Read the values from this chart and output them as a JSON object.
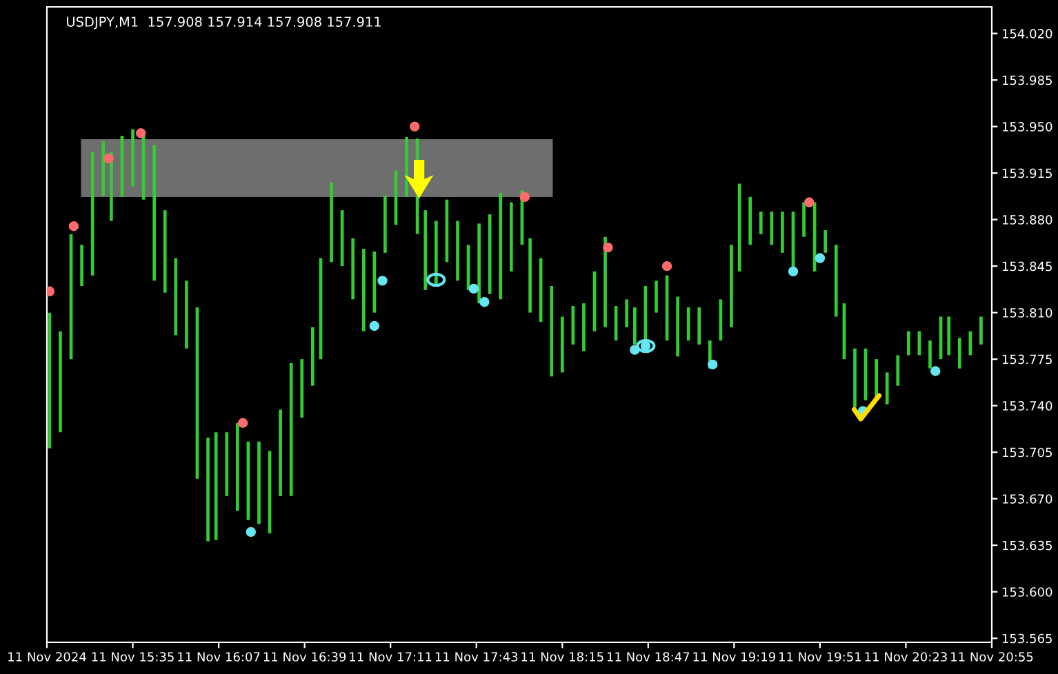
{
  "chart_data": {
    "type": "bar",
    "title": "USDJPY,M1  157.908 157.914 157.908 157.911",
    "x": [
      "2024-11-11T15:04",
      "2024-11-11T15:08",
      "2024-11-11T15:12",
      "2024-11-11T15:16",
      "2024-11-11T15:20",
      "2024-11-11T15:24",
      "2024-11-11T15:27",
      "2024-11-11T15:31",
      "2024-11-11T15:35",
      "2024-11-11T15:39",
      "2024-11-11T15:43",
      "2024-11-11T15:47",
      "2024-11-11T15:51",
      "2024-11-11T15:55",
      "2024-11-11T15:59",
      "2024-11-11T16:03",
      "2024-11-11T16:06",
      "2024-11-11T16:10",
      "2024-11-11T16:14",
      "2024-11-11T16:18",
      "2024-11-11T16:22",
      "2024-11-11T16:26",
      "2024-11-11T16:30",
      "2024-11-11T16:34",
      "2024-11-11T16:38",
      "2024-11-11T16:42",
      "2024-11-11T16:45",
      "2024-11-11T16:49",
      "2024-11-11T16:53",
      "2024-11-11T16:57",
      "2024-11-11T17:01",
      "2024-11-11T17:05",
      "2024-11-11T17:09",
      "2024-11-11T17:13",
      "2024-11-11T17:17",
      "2024-11-11T17:21",
      "2024-11-11T17:24",
      "2024-11-11T17:28",
      "2024-11-11T17:32",
      "2024-11-11T17:36",
      "2024-11-11T17:40",
      "2024-11-11T17:44",
      "2024-11-11T17:48",
      "2024-11-11T17:52",
      "2024-11-11T17:56",
      "2024-11-11T18:00",
      "2024-11-11T18:03",
      "2024-11-11T18:07",
      "2024-11-11T18:11",
      "2024-11-11T18:15",
      "2024-11-11T18:19",
      "2024-11-11T18:23",
      "2024-11-11T18:27",
      "2024-11-11T18:31",
      "2024-11-11T18:35",
      "2024-11-11T18:39",
      "2024-11-11T18:42",
      "2024-11-11T18:46",
      "2024-11-11T18:50",
      "2024-11-11T18:54",
      "2024-11-11T18:58",
      "2024-11-11T19:02",
      "2024-11-11T19:06",
      "2024-11-11T19:10",
      "2024-11-11T19:14",
      "2024-11-11T19:18",
      "2024-11-11T19:21",
      "2024-11-11T19:25",
      "2024-11-11T19:29",
      "2024-11-11T19:33",
      "2024-11-11T19:37",
      "2024-11-11T19:41",
      "2024-11-11T19:45",
      "2024-11-11T19:49",
      "2024-11-11T19:53",
      "2024-11-11T19:57",
      "2024-11-11T20:00",
      "2024-11-11T20:04",
      "2024-11-11T20:08",
      "2024-11-11T20:12",
      "2024-11-11T20:16",
      "2024-11-11T20:20",
      "2024-11-11T20:24",
      "2024-11-11T20:28",
      "2024-11-11T20:32",
      "2024-11-11T20:36",
      "2024-11-11T20:39",
      "2024-11-11T20:43",
      "2024-11-11T20:47",
      "2024-11-11T20:51"
    ],
    "series": [
      {
        "color": "#33cc33",
        "base": [
          153.708,
          153.72,
          153.775,
          153.83,
          153.838,
          153.898,
          153.879,
          153.897,
          153.905,
          153.895,
          153.834,
          153.825,
          153.793,
          153.783,
          153.685,
          153.638,
          153.639,
          153.672,
          153.661,
          153.654,
          153.651,
          153.644,
          153.672,
          153.672,
          153.731,
          153.755,
          153.775,
          153.848,
          153.845,
          153.82,
          153.796,
          153.81,
          153.855,
          153.876,
          153.897,
          153.869,
          153.827,
          153.83,
          153.848,
          153.834,
          153.827,
          153.817,
          153.824,
          153.82,
          153.841,
          153.861,
          153.81,
          153.803,
          153.762,
          153.765,
          153.786,
          153.781,
          153.796,
          153.799,
          153.789,
          153.799,
          153.786,
          153.789,
          153.81,
          153.789,
          153.777,
          153.789,
          153.786,
          153.768,
          153.789,
          153.799,
          153.841,
          153.861,
          153.869,
          153.861,
          153.855,
          153.843,
          153.867,
          153.841,
          153.855,
          153.807,
          153.775,
          153.739,
          153.744,
          153.744,
          153.741,
          153.755,
          153.778,
          153.778,
          153.768,
          153.775,
          153.778,
          153.768,
          153.778,
          153.786
        ],
        "values": [
          0.102,
          0.076,
          0.094,
          0.031,
          0.093,
          0.041,
          0.052,
          0.046,
          0.043,
          0.048,
          0.102,
          0.062,
          0.058,
          0.051,
          0.129,
          0.078,
          0.081,
          0.048,
          0.066,
          0.059,
          0.062,
          0.062,
          0.065,
          0.1,
          0.044,
          0.044,
          0.076,
          0.06,
          0.042,
          0.046,
          0.062,
          0.046,
          0.043,
          0.041,
          0.045,
          0.072,
          0.06,
          0.049,
          0.047,
          0.045,
          0.034,
          0.06,
          0.06,
          0.08,
          0.052,
          0.041,
          0.056,
          0.048,
          0.068,
          0.042,
          0.029,
          0.036,
          0.045,
          0.068,
          0.026,
          0.021,
          0.028,
          0.041,
          0.024,
          0.049,
          0.045,
          0.025,
          0.028,
          0.021,
          0.031,
          0.062,
          0.066,
          0.036,
          0.017,
          0.025,
          0.031,
          0.043,
          0.026,
          0.052,
          0.017,
          0.054,
          0.042,
          0.044,
          0.039,
          0.031,
          0.024,
          0.023,
          0.018,
          0.018,
          0.021,
          0.032,
          0.029,
          0.023,
          0.018,
          0.021
        ]
      },
      {
        "type": "scatter",
        "color": "#ff6b6b",
        "x": [
          "2024-11-11T15:04",
          "2024-11-11T15:13",
          "2024-11-11T15:26",
          "2024-11-11T15:38",
          "2024-11-11T16:16",
          "2024-11-11T17:20",
          "2024-11-11T18:01",
          "2024-11-11T18:32",
          "2024-11-11T18:54",
          "2024-11-11T19:47"
        ],
        "values": [
          153.826,
          153.875,
          153.926,
          153.945,
          153.727,
          153.95,
          153.897,
          153.859,
          153.845,
          153.893
        ]
      },
      {
        "type": "scatter",
        "color": "#66e6f2",
        "x": [
          "2024-11-11T16:19",
          "2024-11-11T17:05",
          "2024-11-11T17:08",
          "2024-11-11T17:42",
          "2024-11-11T17:46",
          "2024-11-11T18:42",
          "2024-11-11T18:46",
          "2024-11-11T19:11",
          "2024-11-11T19:41",
          "2024-11-11T19:51",
          "2024-11-11T20:07",
          "2024-11-11T20:34"
        ],
        "values": [
          153.645,
          153.8,
          153.834,
          153.828,
          153.818,
          153.782,
          153.785,
          153.771,
          153.841,
          153.851,
          153.736,
          153.766
        ]
      }
    ],
    "xlim": [
      "2024-11-11T15:03",
      "2024-11-11T20:55"
    ],
    "xticks": [
      {
        "value": "2024-11-11T15:03",
        "label": "11 Nov 2024"
      },
      {
        "value": "2024-11-11T15:35",
        "label": "11 Nov 15:35"
      },
      {
        "value": "2024-11-11T16:07",
        "label": "11 Nov 16:07"
      },
      {
        "value": "2024-11-11T16:39",
        "label": "11 Nov 16:39"
      },
      {
        "value": "2024-11-11T17:11",
        "label": "11 Nov 17:11"
      },
      {
        "value": "2024-11-11T17:43",
        "label": "11 Nov 17:43"
      },
      {
        "value": "2024-11-11T18:15",
        "label": "11 Nov 18:15"
      },
      {
        "value": "2024-11-11T18:47",
        "label": "11 Nov 18:47"
      },
      {
        "value": "2024-11-11T19:19",
        "label": "11 Nov 19:19"
      },
      {
        "value": "2024-11-11T19:51",
        "label": "11 Nov 19:51"
      },
      {
        "value": "2024-11-11T20:23",
        "label": "11 Nov 20:23"
      },
      {
        "value": "2024-11-11T20:55",
        "label": "11 Nov 20:55"
      }
    ],
    "ylim": [
      153.562,
      154.04
    ],
    "yticks": [
      {
        "value": 153.565,
        "label": "153.565"
      },
      {
        "value": 153.6,
        "label": "153.600"
      },
      {
        "value": 153.635,
        "label": "153.635"
      },
      {
        "value": 153.67,
        "label": "153.670"
      },
      {
        "value": 153.705,
        "label": "153.705"
      },
      {
        "value": 153.74,
        "label": "153.740"
      },
      {
        "value": 153.775,
        "label": "153.775"
      },
      {
        "value": 153.81,
        "label": "153.810"
      },
      {
        "value": 153.845,
        "label": "153.845"
      },
      {
        "value": 153.88,
        "label": "153.880"
      },
      {
        "value": 153.915,
        "label": "153.915"
      },
      {
        "value": 153.95,
        "label": "153.950"
      },
      {
        "value": 153.985,
        "label": "153.985"
      },
      {
        "value": 154.02,
        "label": "154.020"
      }
    ],
    "marker": "circle",
    "grid": false,
    "legend": false
  }
}
